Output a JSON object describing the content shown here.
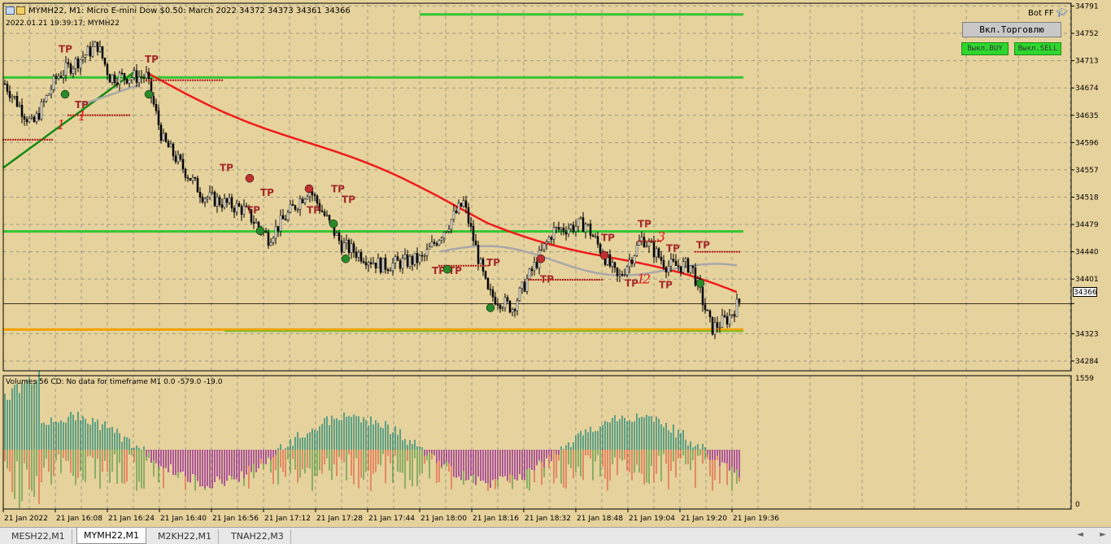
{
  "header": {
    "symbol_line": "MYMH22, M1:  Micro E-mini Dow $0.50: March 2022  34372 34373 34361 34366",
    "time_line": "2022.01.21 19:39:17; MYMH22"
  },
  "bot": {
    "label": "Bot FF"
  },
  "buttons": {
    "trade": "Вкл.Торговлю",
    "buy": "Выкл.BUY",
    "sell": "Выкл.SELL"
  },
  "price_axis": {
    "labels": [
      "34791",
      "34752",
      "34713",
      "34674",
      "34635",
      "34596",
      "34557",
      "34518",
      "34479",
      "34440",
      "34401",
      "34366",
      "34323",
      "34284"
    ],
    "current_price": "34366",
    "min": 34270,
    "max": 34795
  },
  "volume_panel": {
    "title": "Volumes 56 CD: No data for timeframe M1 0.0 -579.0 -19.0",
    "max_label": "1559",
    "zero_label": "0"
  },
  "time_axis": {
    "labels": [
      "21 Jan 2022",
      "21 Jan 16:08",
      "21 Jan 16:24",
      "21 Jan 16:40",
      "21 Jan 16:56",
      "21 Jan 17:12",
      "21 Jan 17:28",
      "21 Jan 17:44",
      "21 Jan 18:00",
      "21 Jan 18:16",
      "21 Jan 18:32",
      "21 Jan 18:48",
      "21 Jan 19:04",
      "21 Jan 19:20",
      "21 Jan 19:36"
    ]
  },
  "levels": {
    "green": [
      34779,
      34689,
      34469
    ],
    "orange": 34329
  },
  "tp_label": "TP",
  "annotations": [
    "1",
    "1",
    "1",
    "2",
    "3"
  ],
  "tabs": [
    {
      "label": "MESH22,M1",
      "active": false
    },
    {
      "label": "MYMH22,M1",
      "active": true
    },
    {
      "label": "M2KH22,M1",
      "active": false
    },
    {
      "label": "TNAH22,M3",
      "active": false
    }
  ],
  "scroll": {
    "left": "◄",
    "right": "►"
  },
  "colors": {
    "background": "#e6d29c",
    "grid": "#9c9c8c",
    "bull_candle": "#ffffff",
    "bear_candle": "#000000",
    "ma_red": "#ee1c1c",
    "ma_green": "#138a13",
    "ma_gray": "#a8a8a8",
    "level_green": "#33c633",
    "level_orange": "#f5a100",
    "tp_marker": "#a52a2a",
    "volume_pos": "#2f8f7f",
    "volume_neg": "#9a2d9a",
    "volume_up": "#2e8b2e",
    "volume_down": "#e0402a"
  }
}
